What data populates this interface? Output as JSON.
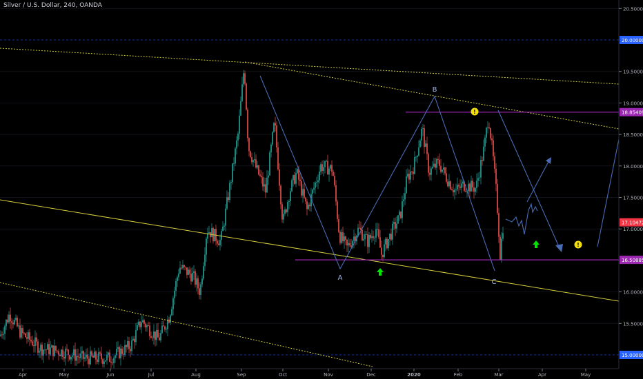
{
  "header": {
    "title": "Silver / U.S. Dollar, 240, OANDA"
  },
  "chart_data": {
    "type": "candlestick",
    "ylim": [
      14.95,
      20.6
    ],
    "y_ticks": [
      "20.50000",
      "19.50000",
      "19.00000",
      "18.50000",
      "18.00000",
      "17.50000",
      "17.00000",
      "16.00000",
      "15.50000"
    ],
    "x_ticks": [
      "Apr",
      "May",
      "Jun",
      "Jul",
      "Aug",
      "Sep",
      "Oct",
      "Nov",
      "Dec",
      "2020",
      "Feb",
      "Mar",
      "Apr",
      "May"
    ],
    "price_labels": [
      {
        "value": 20.0,
        "text": "20.00000",
        "color": "#2962ff"
      },
      {
        "value": 18.85409,
        "text": "18.85409",
        "color": "#9c27b0"
      },
      {
        "value": 17.10472,
        "text": "17.10472",
        "color": "#f23645"
      },
      {
        "value": 16.50885,
        "text": "16.50885",
        "color": "#9c27b0"
      },
      {
        "value": 15.0,
        "text": "15.00000",
        "color": "#2962ff"
      }
    ],
    "horizontal_levels": [
      {
        "value": 18.85409,
        "from": "Dec",
        "color": "#9c27b0"
      },
      {
        "value": 16.50885,
        "from": "Nov",
        "color": "#9c27b0"
      }
    ],
    "wave_labels": [
      {
        "text": "A",
        "date": "Nov",
        "value": 16.27
      },
      {
        "text": "B",
        "date": "Jan",
        "value": 19.15
      },
      {
        "text": "C",
        "date": "Mar",
        "value": 16.06
      }
    ],
    "colors": {
      "up": "#26a69a",
      "down": "#ef5350",
      "trendline": "#d6cf3c",
      "wave": "#4a6cb5",
      "level": "#9c27b0",
      "marker_up": "#00e600",
      "alert": "#f5e10a"
    },
    "markers": [
      {
        "type": "arrow-up",
        "date": "Dec",
        "value": 16.4
      },
      {
        "type": "arrow-up",
        "date": "Apr",
        "value": 16.78
      },
      {
        "type": "alert",
        "date": "Feb",
        "value": 18.75
      },
      {
        "type": "alert",
        "date": "May",
        "value": 16.78
      }
    ]
  }
}
